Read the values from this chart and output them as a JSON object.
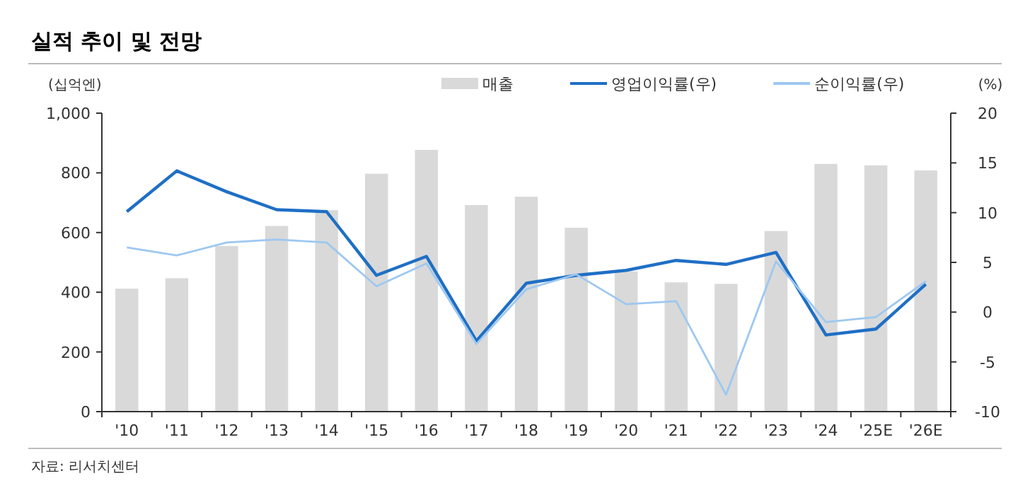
{
  "chart_data": {
    "type": "bar",
    "title": "실적 추이 및 전망",
    "ylabel": "(십억엔)",
    "y2label": "(%)",
    "annotations": [
      "자료: 리서치센터"
    ],
    "categories": [
      "'10",
      "'11",
      "'12",
      "'13",
      "'14",
      "'15",
      "'16",
      "'17",
      "'18",
      "'19",
      "'20",
      "'21",
      "'22",
      "'23",
      "'24",
      "'25E",
      "'26E"
    ],
    "series": [
      {
        "name": "매출",
        "color": "#d9d9d9",
        "values": [
          412,
          447,
          555,
          622,
          675,
          797,
          877,
          692,
          720,
          616,
          470,
          433,
          428,
          605,
          830,
          825,
          808
        ]
      },
      {
        "name": "영업이익률(우)",
        "type": "line",
        "axis": "y2",
        "color": "#1f6fc5",
        "values": [
          10.1,
          14.2,
          12.1,
          10.3,
          10.1,
          3.7,
          5.6,
          -2.9,
          2.9,
          3.7,
          4.2,
          5.2,
          4.8,
          6.0,
          -2.3,
          -1.7,
          2.8
        ]
      },
      {
        "name": "순이익률(우)",
        "type": "line",
        "axis": "y2",
        "color": "#9dc8f0",
        "values": [
          6.5,
          5.7,
          7.0,
          7.3,
          7.0,
          2.6,
          4.9,
          -3.2,
          2.3,
          3.8,
          0.8,
          1.1,
          -8.3,
          5.1,
          -1.0,
          -0.5,
          3.1
        ]
      }
    ],
    "ylim": [
      0,
      1000
    ],
    "yticks": [
      0,
      200,
      400,
      600,
      800,
      {
        "value": 1000,
        "label": "1,000"
      }
    ],
    "y2lim": [
      -10,
      20
    ],
    "y2ticks": [
      -10,
      -5,
      0,
      5,
      10,
      15,
      20
    ],
    "legend": "top right",
    "grid": false
  }
}
